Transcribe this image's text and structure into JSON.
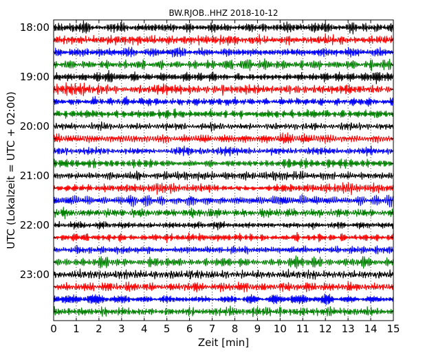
{
  "chart_data": {
    "type": "line",
    "title": "BW.RJOB..HHZ 2018-10-12",
    "xlabel": "Zeit  [min]",
    "ylabel": "UTC (Lokalzeit = UTC + 02:00)",
    "xlim": [
      0,
      15
    ],
    "x_ticks": [
      0,
      1,
      2,
      3,
      4,
      5,
      6,
      7,
      8,
      9,
      10,
      11,
      12,
      13,
      14,
      15
    ],
    "y_tick_labels": [
      "18:00",
      "19:00",
      "20:00",
      "21:00",
      "22:00",
      "23:00"
    ],
    "trace_minutes": 15,
    "trace_start_times": [
      "18:00",
      "18:15",
      "18:30",
      "18:45",
      "19:00",
      "19:15",
      "19:30",
      "19:45",
      "20:00",
      "20:15",
      "20:30",
      "20:45",
      "21:00",
      "21:15",
      "21:30",
      "21:45",
      "22:00",
      "22:15",
      "22:30",
      "22:45",
      "23:00",
      "23:15",
      "23:30",
      "23:45"
    ],
    "color_cycle": [
      "#000000",
      "#ff0000",
      "#0000ff",
      "#008000"
    ],
    "grid": "vertical dotted at each minute",
    "signal": "continuous seismic noise, roughly constant amplitude"
  }
}
